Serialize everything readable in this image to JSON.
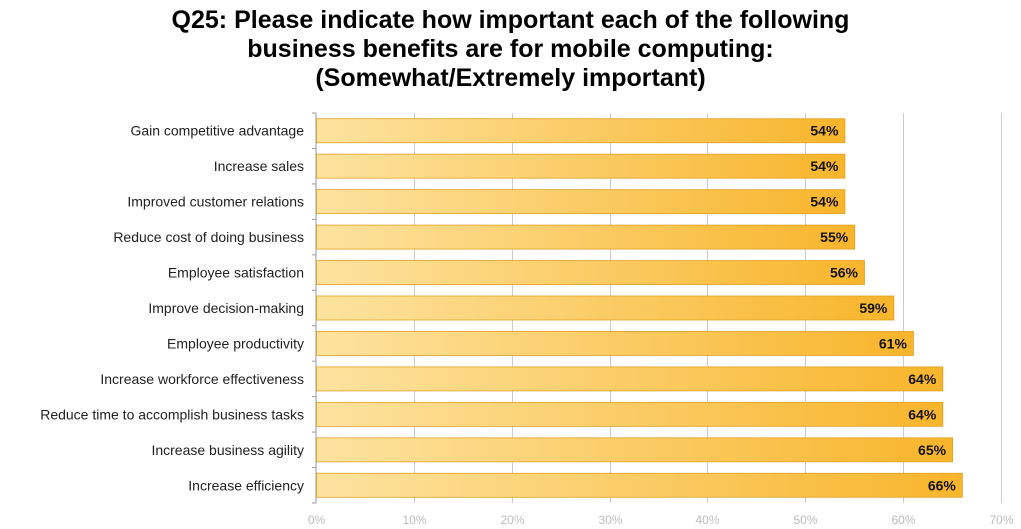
{
  "chart_data": {
    "type": "bar",
    "orientation": "horizontal",
    "title_lines": [
      "Q25: Please indicate how important each of the following",
      "business benefits are for mobile computing:",
      "(Somewhat/Extremely important)"
    ],
    "categories": [
      "Gain competitive advantage",
      "Increase sales",
      "Improved customer relations",
      "Reduce cost of doing business",
      "Employee satisfaction",
      "Improve decision-making",
      "Employee productivity",
      "Increase workforce effectiveness",
      "Reduce time to accomplish business tasks",
      "Increase business agility",
      "Increase efficiency"
    ],
    "values": [
      54,
      54,
      54,
      55,
      56,
      59,
      61,
      64,
      64,
      65,
      66
    ],
    "value_labels": [
      "54%",
      "54%",
      "54%",
      "55%",
      "56%",
      "59%",
      "61%",
      "64%",
      "64%",
      "65%",
      "66%"
    ],
    "xlim": [
      0,
      70
    ],
    "xticks": [
      "0%",
      "10%",
      "20%",
      "30%",
      "40%",
      "50%",
      "60%",
      "70%"
    ],
    "grid": true,
    "legend": "none",
    "colors": {
      "bar_start": "#fde3a0",
      "bar_end": "#f8b52b",
      "bar_border": "#e0a020",
      "grid": "#cccccc"
    }
  }
}
